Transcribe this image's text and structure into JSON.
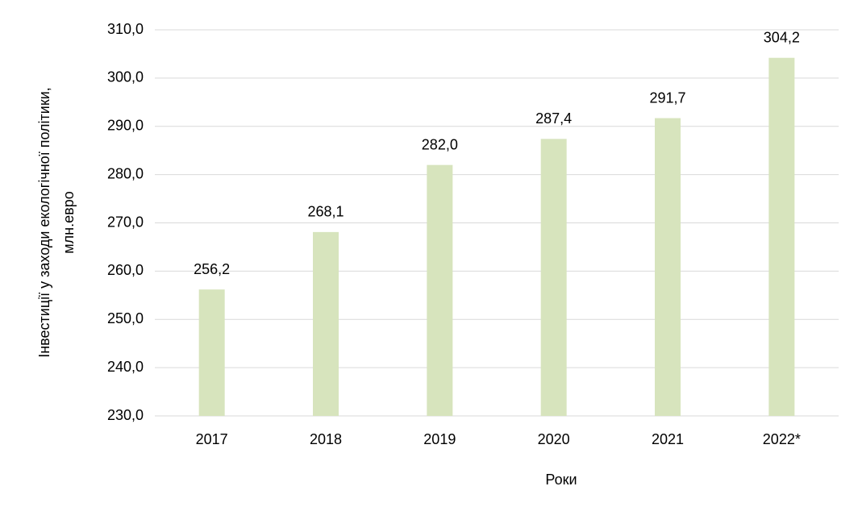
{
  "chart_data": {
    "type": "bar",
    "xlabel": "Роки",
    "ylabel": [
      "Інвестиції у заходи екологічної політики,",
      "млн.евро"
    ],
    "categories": [
      "2017",
      "2018",
      "2019",
      "2020",
      "2021",
      "2022*"
    ],
    "values": [
      256.2,
      268.1,
      282.0,
      287.4,
      291.7,
      304.2
    ],
    "value_labels": [
      "256,2",
      "268,1",
      "282,0",
      "287,4",
      "291,7",
      "304,2"
    ],
    "color": "#d7e4bd",
    "ylim": [
      230,
      310
    ],
    "yticks": [
      {
        "value": 230,
        "label": "230,0"
      },
      {
        "value": 240,
        "label": "240,0"
      },
      {
        "value": 250,
        "label": "250,0"
      },
      {
        "value": 260,
        "label": "260,0"
      },
      {
        "value": 270,
        "label": "270,0"
      },
      {
        "value": 280,
        "label": "280,0"
      },
      {
        "value": 290,
        "label": "290,0"
      },
      {
        "value": 300,
        "label": "300,0"
      },
      {
        "value": 310,
        "label": "310,0"
      }
    ],
    "grid": true
  }
}
